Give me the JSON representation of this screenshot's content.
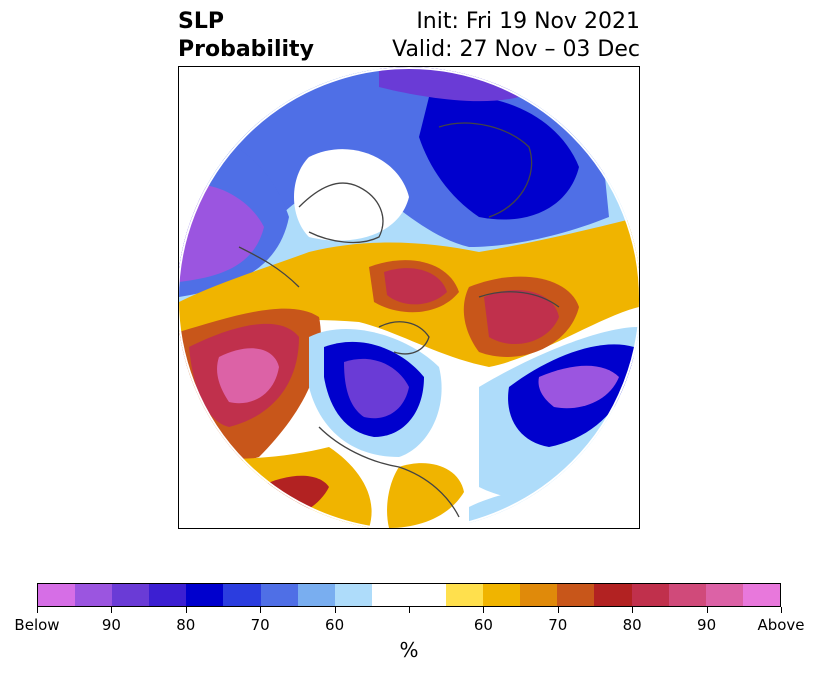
{
  "title": {
    "left_line1": "SLP",
    "left_line2": "Probability",
    "right_line1": "Init: Fri 19 Nov 2021",
    "right_line2": "Valid: 27 Nov – 03 Dec"
  },
  "map": {
    "projection": "north polar stereographic",
    "field": "SLP probability"
  },
  "colorbar": {
    "unit": "%",
    "colors": [
      "#d66ee6",
      "#9b55e0",
      "#6a3bd6",
      "#3c1fd2",
      "#0000cd",
      "#2b3ddf",
      "#4f6fe6",
      "#79aef0",
      "#aedcfa",
      "#ffffff",
      "#ffffff",
      "#ffe04d",
      "#f0b400",
      "#e08a0a",
      "#c8561a",
      "#b22222",
      "#c0304c",
      "#d04a7a",
      "#dc62a6",
      "#e878dc"
    ],
    "tick_labels": [
      "Below",
      "90",
      "80",
      "70",
      "60",
      "",
      "60",
      "70",
      "80",
      "90",
      "Above"
    ]
  }
}
